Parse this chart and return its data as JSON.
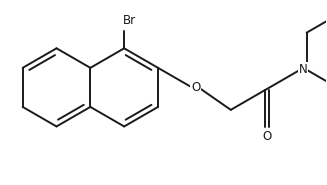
{
  "background_color": "#ffffff",
  "line_color": "#1a1a1a",
  "bond_width": 1.4,
  "br_label": "Br",
  "o_label": "O",
  "n_label": "N",
  "o2_label": "O",
  "figsize": [
    3.27,
    1.85
  ],
  "dpi": 100
}
